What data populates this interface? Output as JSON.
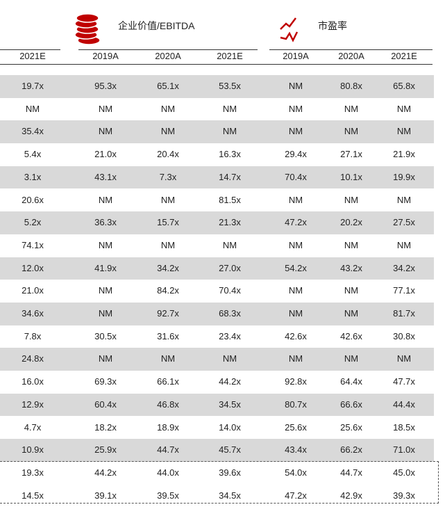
{
  "headers": {
    "ev_ebitda": "企业价值/EBITDA",
    "pe": "市盈率",
    "accent": "#c00000"
  },
  "years": [
    "2021E",
    "2019A",
    "2020A",
    "2021E",
    "2019A",
    "2020A",
    "2021E"
  ],
  "rows": [
    [
      "19.7x",
      "95.3x",
      "65.1x",
      "53.5x",
      "NM",
      "80.8x",
      "65.8x"
    ],
    [
      "NM",
      "NM",
      "NM",
      "NM",
      "NM",
      "NM",
      "NM"
    ],
    [
      "35.4x",
      "NM",
      "NM",
      "NM",
      "NM",
      "NM",
      "NM"
    ],
    [
      "5.4x",
      "21.0x",
      "20.4x",
      "16.3x",
      "29.4x",
      "27.1x",
      "21.9x"
    ],
    [
      "3.1x",
      "43.1x",
      "7.3x",
      "14.7x",
      "70.4x",
      "10.1x",
      "19.9x"
    ],
    [
      "20.6x",
      "NM",
      "NM",
      "81.5x",
      "NM",
      "NM",
      "NM"
    ],
    [
      "5.2x",
      "36.3x",
      "15.7x",
      "21.3x",
      "47.2x",
      "20.2x",
      "27.5x"
    ],
    [
      "74.1x",
      "NM",
      "NM",
      "NM",
      "NM",
      "NM",
      "NM"
    ],
    [
      "12.0x",
      "41.9x",
      "34.2x",
      "27.0x",
      "54.2x",
      "43.2x",
      "34.2x"
    ],
    [
      "21.0x",
      "NM",
      "84.2x",
      "70.4x",
      "NM",
      "NM",
      "77.1x"
    ],
    [
      "34.6x",
      "NM",
      "92.7x",
      "68.3x",
      "NM",
      "NM",
      "81.7x"
    ],
    [
      "7.8x",
      "30.5x",
      "31.6x",
      "23.4x",
      "42.6x",
      "42.6x",
      "30.8x"
    ],
    [
      "24.8x",
      "NM",
      "NM",
      "NM",
      "NM",
      "NM",
      "NM"
    ],
    [
      "16.0x",
      "69.3x",
      "66.1x",
      "44.2x",
      "92.8x",
      "64.4x",
      "47.7x"
    ],
    [
      "12.9x",
      "60.4x",
      "46.8x",
      "34.5x",
      "80.7x",
      "66.6x",
      "44.4x"
    ],
    [
      "4.7x",
      "18.2x",
      "18.9x",
      "14.0x",
      "25.6x",
      "25.6x",
      "18.5x"
    ],
    [
      "10.9x",
      "25.9x",
      "44.7x",
      "45.7x",
      "43.4x",
      "66.2x",
      "71.0x"
    ],
    [
      "19.3x",
      "44.2x",
      "44.0x",
      "39.6x",
      "54.0x",
      "44.7x",
      "45.0x"
    ],
    [
      "14.5x",
      "39.1x",
      "39.5x",
      "34.5x",
      "47.2x",
      "42.9x",
      "39.3x"
    ]
  ]
}
